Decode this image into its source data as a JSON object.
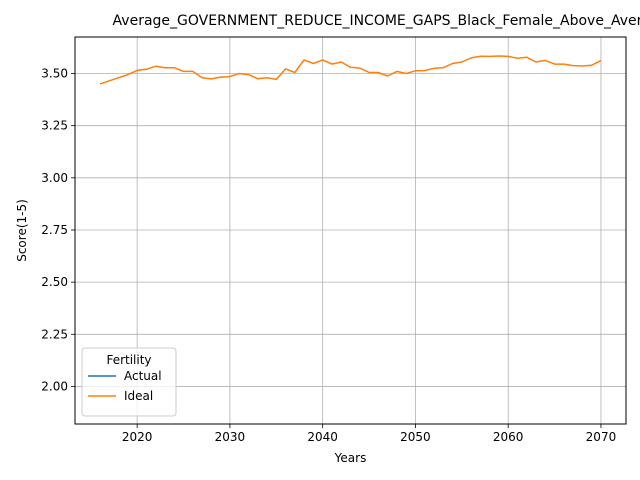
{
  "chart_data": {
    "type": "line",
    "title": "Average_GOVERNMENT_REDUCE_INCOME_GAPS_Black_Female_Above_Average",
    "xlabel": "Years",
    "ylabel": "Score(1-5)",
    "xlim": [
      2013.3,
      2072.7
    ],
    "ylim": [
      1.82,
      3.675
    ],
    "xticks": [
      2020,
      2030,
      2040,
      2050,
      2060,
      2070
    ],
    "yticks": [
      2.0,
      2.25,
      2.5,
      2.75,
      3.0,
      3.25,
      3.5
    ],
    "grid": true,
    "legend": {
      "title": "Fertility",
      "placement": "lower-left"
    },
    "colors": {
      "Actual": "#1f77b4",
      "Ideal": "#ff7f0e"
    },
    "series": [
      {
        "name": "Actual",
        "x": [],
        "y": []
      },
      {
        "name": "Ideal",
        "x": [
          2016,
          2017,
          2018,
          2019,
          2020,
          2021,
          2022,
          2023,
          2024,
          2025,
          2026,
          2027,
          2028,
          2029,
          2030,
          2031,
          2032,
          2033,
          2034,
          2035,
          2036,
          2037,
          2038,
          2039,
          2040,
          2041,
          2042,
          2043,
          2044,
          2045,
          2046,
          2047,
          2048,
          2049,
          2050,
          2051,
          2052,
          2053,
          2054,
          2055,
          2056,
          2057,
          2058,
          2059,
          2060,
          2061,
          2062,
          2063,
          2064,
          2065,
          2066,
          2067,
          2068,
          2069,
          2070
        ],
        "y": [
          3.45,
          3.465,
          3.48,
          3.495,
          3.515,
          3.52,
          3.535,
          3.528,
          3.528,
          3.51,
          3.51,
          3.48,
          3.474,
          3.483,
          3.485,
          3.5,
          3.495,
          3.475,
          3.48,
          3.472,
          3.522,
          3.505,
          3.565,
          3.548,
          3.565,
          3.545,
          3.555,
          3.53,
          3.526,
          3.505,
          3.505,
          3.488,
          3.51,
          3.5,
          3.513,
          3.514,
          3.525,
          3.528,
          3.548,
          3.555,
          3.575,
          3.583,
          3.582,
          3.584,
          3.582,
          3.573,
          3.578,
          3.555,
          3.563,
          3.545,
          3.545,
          3.538,
          3.536,
          3.54,
          3.562
        ]
      }
    ]
  }
}
